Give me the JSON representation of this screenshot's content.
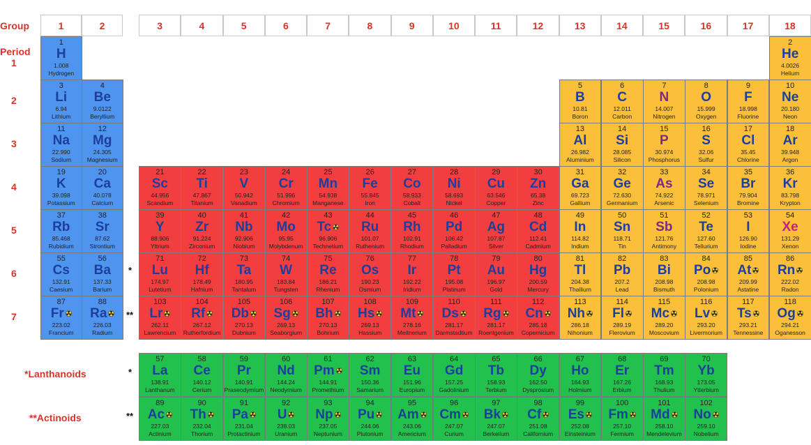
{
  "header": {
    "group_label": "Group",
    "groups": [
      1,
      2,
      3,
      4,
      5,
      6,
      7,
      8,
      9,
      10,
      11,
      12,
      13,
      14,
      15,
      16,
      17,
      18
    ],
    "period_label": "Period"
  },
  "period6_mark": "*",
  "period7_mark": "**",
  "periods": [
    {
      "label": 1,
      "cells": [
        {
          "n": 1,
          "s": "H",
          "m": "1.008",
          "name": "Hydrogen"
        },
        {
          "n": 2,
          "s": "He",
          "m": "4.0026",
          "name": "Helium"
        }
      ]
    },
    {
      "label": 2,
      "cells": [
        {
          "n": 3,
          "s": "Li",
          "m": "6.94",
          "name": "Lithium"
        },
        {
          "n": 4,
          "s": "Be",
          "m": "9.0122",
          "name": "Beryllium"
        },
        {
          "n": 5,
          "s": "B",
          "m": "10.81",
          "name": "Boron"
        },
        {
          "n": 6,
          "s": "C",
          "m": "12.011",
          "name": "Carbon"
        },
        {
          "n": 7,
          "s": "N",
          "m": "14.007",
          "name": "Nitrogen",
          "c": "#7b2a86"
        },
        {
          "n": 8,
          "s": "O",
          "m": "15.999",
          "name": "Oxygen"
        },
        {
          "n": 9,
          "s": "F",
          "m": "18.998",
          "name": "Fluorine"
        },
        {
          "n": 10,
          "s": "Ne",
          "m": "20.180",
          "name": "Neon"
        }
      ]
    },
    {
      "label": 3,
      "cells": [
        {
          "n": 11,
          "s": "Na",
          "m": "22.990",
          "name": "Sodium"
        },
        {
          "n": 12,
          "s": "Mg",
          "m": "24.305",
          "name": "Magnesium"
        },
        {
          "n": 13,
          "s": "Al",
          "m": "26.982",
          "name": "Aluminium"
        },
        {
          "n": 14,
          "s": "Si",
          "m": "28.085",
          "name": "Silicon"
        },
        {
          "n": 15,
          "s": "P",
          "m": "30.974",
          "name": "Phosphorus",
          "c": "#7b2a86"
        },
        {
          "n": 16,
          "s": "S",
          "m": "32.06",
          "name": "Sulfur"
        },
        {
          "n": 17,
          "s": "Cl",
          "m": "35.45",
          "name": "Chlorine"
        },
        {
          "n": 18,
          "s": "Ar",
          "m": "39.948",
          "name": "Argon"
        }
      ]
    },
    {
      "label": 4,
      "cells": [
        {
          "n": 19,
          "s": "K",
          "m": "39.098",
          "name": "Potassium"
        },
        {
          "n": 20,
          "s": "Ca",
          "m": "40.078",
          "name": "Calcium"
        },
        {
          "n": 21,
          "s": "Sc",
          "m": "44.956",
          "name": "Scandium"
        },
        {
          "n": 22,
          "s": "Ti",
          "m": "47.867",
          "name": "Titanium"
        },
        {
          "n": 23,
          "s": "V",
          "m": "50.942",
          "name": "Vanadium"
        },
        {
          "n": 24,
          "s": "Cr",
          "m": "51.996",
          "name": "Chromium"
        },
        {
          "n": 25,
          "s": "Mn",
          "m": "54.938",
          "name": "Manganese"
        },
        {
          "n": 26,
          "s": "Fe",
          "m": "55.845",
          "name": "Iron"
        },
        {
          "n": 27,
          "s": "Co",
          "m": "58.933",
          "name": "Cobalt"
        },
        {
          "n": 28,
          "s": "Ni",
          "m": "58.693",
          "name": "Nickel"
        },
        {
          "n": 29,
          "s": "Cu",
          "m": "63.546",
          "name": "Copper"
        },
        {
          "n": 30,
          "s": "Zn",
          "m": "65.38",
          "name": "Zinc"
        },
        {
          "n": 31,
          "s": "Ga",
          "m": "69.723",
          "name": "Gallium"
        },
        {
          "n": 32,
          "s": "Ge",
          "m": "72.630",
          "name": "Germanium"
        },
        {
          "n": 33,
          "s": "As",
          "m": "74.922",
          "name": "Arsenic",
          "c": "#7b2a86"
        },
        {
          "n": 34,
          "s": "Se",
          "m": "78.971",
          "name": "Selenium"
        },
        {
          "n": 35,
          "s": "Br",
          "m": "79.904",
          "name": "Bromine"
        },
        {
          "n": 36,
          "s": "Kr",
          "m": "83.798",
          "name": "Krypton"
        }
      ]
    },
    {
      "label": 5,
      "cells": [
        {
          "n": 37,
          "s": "Rb",
          "m": "85.468",
          "name": "Rubidium"
        },
        {
          "n": 38,
          "s": "Sr",
          "m": "87.62",
          "name": "Strontium"
        },
        {
          "n": 39,
          "s": "Y",
          "m": "88.906",
          "name": "Yttrium"
        },
        {
          "n": 40,
          "s": "Zr",
          "m": "91.224",
          "name": "Zirconium"
        },
        {
          "n": 41,
          "s": "Nb",
          "m": "92.906",
          "name": "Niobium"
        },
        {
          "n": 42,
          "s": "Mo",
          "m": "95.95",
          "name": "Molybdenum"
        },
        {
          "n": 43,
          "s": "Tc",
          "m": "96.906",
          "name": "Technetium",
          "r": true
        },
        {
          "n": 44,
          "s": "Ru",
          "m": "101.07",
          "name": "Ruthenium"
        },
        {
          "n": 45,
          "s": "Rh",
          "m": "102.91",
          "name": "Rhodium"
        },
        {
          "n": 46,
          "s": "Pd",
          "m": "106.42",
          "name": "Palladium"
        },
        {
          "n": 47,
          "s": "Ag",
          "m": "107.87",
          "name": "Silver"
        },
        {
          "n": 48,
          "s": "Cd",
          "m": "112.41",
          "name": "Cadmium"
        },
        {
          "n": 49,
          "s": "In",
          "m": "114.82",
          "name": "Indium"
        },
        {
          "n": 50,
          "s": "Sn",
          "m": "118.71",
          "name": "Tin"
        },
        {
          "n": 51,
          "s": "Sb",
          "m": "121.76",
          "name": "Antimony",
          "c": "#7b2a86"
        },
        {
          "n": 52,
          "s": "Te",
          "m": "127.60",
          "name": "Tellurium"
        },
        {
          "n": 53,
          "s": "I",
          "m": "126.90",
          "name": "Iodine"
        },
        {
          "n": 54,
          "s": "Xe",
          "m": "131.29",
          "name": "Xenon",
          "c": "#c4208c"
        }
      ]
    },
    {
      "label": 6,
      "cells": [
        {
          "n": 55,
          "s": "Cs",
          "m": "132.91",
          "name": "Caesium"
        },
        {
          "n": 56,
          "s": "Ba",
          "m": "137.33",
          "name": "Barium"
        },
        {
          "n": 71,
          "s": "Lu",
          "m": "174.97",
          "name": "Lutetium"
        },
        {
          "n": 72,
          "s": "Hf",
          "m": "178.49",
          "name": "Hafnium"
        },
        {
          "n": 73,
          "s": "Ta",
          "m": "180.95",
          "name": "Tantalum"
        },
        {
          "n": 74,
          "s": "W",
          "m": "183.84",
          "name": "Tungsten"
        },
        {
          "n": 75,
          "s": "Re",
          "m": "186.21",
          "name": "Rhenium"
        },
        {
          "n": 76,
          "s": "Os",
          "m": "190.23",
          "name": "Osmium"
        },
        {
          "n": 77,
          "s": "Ir",
          "m": "192.22",
          "name": "Iridium"
        },
        {
          "n": 78,
          "s": "Pt",
          "m": "195.08",
          "name": "Platinum"
        },
        {
          "n": 79,
          "s": "Au",
          "m": "196.97",
          "name": "Gold"
        },
        {
          "n": 80,
          "s": "Hg",
          "m": "200.59",
          "name": "Mercury"
        },
        {
          "n": 81,
          "s": "Tl",
          "m": "204.38",
          "name": "Thallium"
        },
        {
          "n": 82,
          "s": "Pb",
          "m": "207.2",
          "name": "Lead"
        },
        {
          "n": 83,
          "s": "Bi",
          "m": "208.98",
          "name": "Bismuth"
        },
        {
          "n": 84,
          "s": "Po",
          "m": "208.98",
          "name": "Polonium",
          "r": true
        },
        {
          "n": 85,
          "s": "At",
          "m": "209.99",
          "name": "Astatine",
          "r": true
        },
        {
          "n": 86,
          "s": "Rn",
          "m": "222.02",
          "name": "Radon",
          "r": true
        }
      ]
    },
    {
      "label": 7,
      "cells": [
        {
          "n": 87,
          "s": "Fr",
          "m": "223.02",
          "name": "Francium",
          "r": true
        },
        {
          "n": 88,
          "s": "Ra",
          "m": "226.03",
          "name": "Radium",
          "r": true
        },
        {
          "n": 103,
          "s": "Lr",
          "m": "262.11",
          "name": "Lawrencium",
          "r": true
        },
        {
          "n": 104,
          "s": "Rf",
          "m": "267.12",
          "name": "Rutherfordium",
          "r": true
        },
        {
          "n": 105,
          "s": "Db",
          "m": "270.13",
          "name": "Dubnium",
          "r": true
        },
        {
          "n": 106,
          "s": "Sg",
          "m": "269.13",
          "name": "Seaborgium",
          "r": true
        },
        {
          "n": 107,
          "s": "Bh",
          "m": "270.13",
          "name": "Bohrium",
          "r": true
        },
        {
          "n": 108,
          "s": "Hs",
          "m": "269.13",
          "name": "Hassium",
          "r": true
        },
        {
          "n": 109,
          "s": "Mt",
          "m": "278.16",
          "name": "Meitnerium",
          "r": true
        },
        {
          "n": 110,
          "s": "Ds",
          "m": "281.17",
          "name": "Darmstadtium",
          "r": true
        },
        {
          "n": 111,
          "s": "Rg",
          "m": "281.17",
          "name": "Roentgenium",
          "r": true
        },
        {
          "n": 112,
          "s": "Cn",
          "m": "285.18",
          "name": "Copernicium",
          "r": true
        },
        {
          "n": 113,
          "s": "Nh",
          "m": "286.18",
          "name": "Nihonium",
          "r": true
        },
        {
          "n": 114,
          "s": "Fl",
          "m": "289.19",
          "name": "Flerovium",
          "r": true
        },
        {
          "n": 115,
          "s": "Mc",
          "m": "289.20",
          "name": "Moscovium",
          "r": true
        },
        {
          "n": 116,
          "s": "Lv",
          "m": "293.20",
          "name": "Livermorium",
          "r": true
        },
        {
          "n": 117,
          "s": "Ts",
          "m": "293.21",
          "name": "Tennessine",
          "r": true
        },
        {
          "n": 118,
          "s": "Og",
          "m": "294.21",
          "name": "Oganesson",
          "r": true
        }
      ]
    }
  ],
  "lanthanoids": {
    "label": "*Lanthanoids",
    "mark": "*",
    "cells": [
      {
        "n": 57,
        "s": "La",
        "m": "138.91",
        "name": "Lanthanum"
      },
      {
        "n": 58,
        "s": "Ce",
        "m": "140.12",
        "name": "Cerium"
      },
      {
        "n": 59,
        "s": "Pr",
        "m": "140.91",
        "name": "Praseodymium"
      },
      {
        "n": 60,
        "s": "Nd",
        "m": "144.24",
        "name": "Neodymium"
      },
      {
        "n": 61,
        "s": "Pm",
        "m": "144.91",
        "name": "Promethium",
        "r": true
      },
      {
        "n": 62,
        "s": "Sm",
        "m": "150.36",
        "name": "Samarium"
      },
      {
        "n": 63,
        "s": "Eu",
        "m": "151.96",
        "name": "Europium"
      },
      {
        "n": 64,
        "s": "Gd",
        "m": "157.25",
        "name": "Gadolinium"
      },
      {
        "n": 65,
        "s": "Tb",
        "m": "158.93",
        "name": "Terbium"
      },
      {
        "n": 66,
        "s": "Dy",
        "m": "162.50",
        "name": "Dysprosium"
      },
      {
        "n": 67,
        "s": "Ho",
        "m": "164.93",
        "name": "Holmium"
      },
      {
        "n": 68,
        "s": "Er",
        "m": "167.26",
        "name": "Erbium"
      },
      {
        "n": 69,
        "s": "Tm",
        "m": "168.93",
        "name": "Thulium"
      },
      {
        "n": 70,
        "s": "Yb",
        "m": "173.05",
        "name": "Ytterbium"
      }
    ]
  },
  "actinoids": {
    "label": "**Actinoids",
    "mark": "**",
    "cells": [
      {
        "n": 89,
        "s": "Ac",
        "m": "227.03",
        "name": "Actinium",
        "r": true
      },
      {
        "n": 90,
        "s": "Th",
        "m": "232.04",
        "name": "Thorium",
        "r": true
      },
      {
        "n": 91,
        "s": "Pa",
        "m": "231.04",
        "name": "Protactinium",
        "r": true
      },
      {
        "n": 92,
        "s": "U",
        "m": "238.03",
        "name": "Uranium",
        "r": true
      },
      {
        "n": 93,
        "s": "Np",
        "m": "237.05",
        "name": "Neptunium",
        "r": true
      },
      {
        "n": 94,
        "s": "Pu",
        "m": "244.06",
        "name": "Plutonium",
        "r": true
      },
      {
        "n": 95,
        "s": "Am",
        "m": "243.06",
        "name": "Americium",
        "r": true
      },
      {
        "n": 96,
        "s": "Cm",
        "m": "247.07",
        "name": "Curium",
        "r": true
      },
      {
        "n": 97,
        "s": "Bk",
        "m": "247.07",
        "name": "Berkelium",
        "r": true
      },
      {
        "n": 98,
        "s": "Cf",
        "m": "251.08",
        "name": "Californium",
        "r": true
      },
      {
        "n": 99,
        "s": "Es",
        "m": "252.08",
        "name": "Einsteinium",
        "r": true
      },
      {
        "n": 100,
        "s": "Fm",
        "m": "257.10",
        "name": "Fermium",
        "r": true
      },
      {
        "n": 101,
        "s": "Md",
        "m": "258.10",
        "name": "Mendelevium",
        "r": true
      },
      {
        "n": 102,
        "s": "No",
        "m": "259.10",
        "name": "Nobelium",
        "r": true
      }
    ]
  }
}
